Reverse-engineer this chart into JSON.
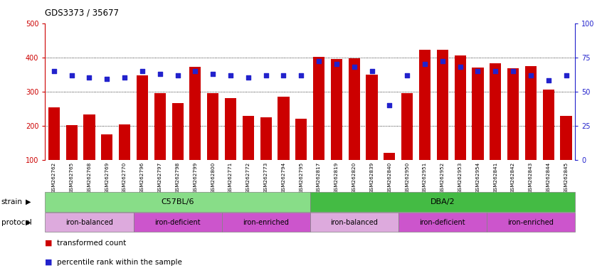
{
  "title": "GDS3373 / 35677",
  "samples": [
    "GSM262762",
    "GSM262765",
    "GSM262768",
    "GSM262769",
    "GSM262770",
    "GSM262796",
    "GSM262797",
    "GSM262798",
    "GSM262799",
    "GSM262800",
    "GSM262771",
    "GSM262772",
    "GSM262773",
    "GSM262794",
    "GSM262795",
    "GSM262817",
    "GSM262819",
    "GSM262820",
    "GSM262839",
    "GSM262840",
    "GSM262950",
    "GSM262951",
    "GSM262952",
    "GSM262953",
    "GSM262954",
    "GSM262841",
    "GSM262842",
    "GSM262843",
    "GSM262844",
    "GSM262845"
  ],
  "bar_values": [
    253,
    201,
    232,
    175,
    203,
    348,
    296,
    265,
    372,
    296,
    281,
    228,
    224,
    285,
    220,
    402,
    395,
    398,
    350,
    120,
    296,
    422,
    422,
    405,
    370,
    383,
    367,
    375,
    305,
    228
  ],
  "dot_values": [
    65,
    62,
    60,
    59,
    60,
    65,
    63,
    62,
    65,
    63,
    62,
    60,
    62,
    62,
    62,
    72,
    70,
    68,
    65,
    40,
    62,
    70,
    72,
    68,
    65,
    65,
    65,
    62,
    58,
    62
  ],
  "ylim_left": [
    100,
    500
  ],
  "ylim_right": [
    0,
    100
  ],
  "yticks_left": [
    100,
    200,
    300,
    400,
    500
  ],
  "yticks_right": [
    0,
    25,
    50,
    75,
    100
  ],
  "bar_color": "#cc0000",
  "dot_color": "#2222cc",
  "axis_color_left": "#cc0000",
  "axis_color_right": "#2222cc",
  "strain_groups": [
    {
      "label": "C57BL/6",
      "start": 0,
      "end": 15,
      "color": "#88dd88"
    },
    {
      "label": "DBA/2",
      "start": 15,
      "end": 30,
      "color": "#44bb44"
    }
  ],
  "protocol_groups": [
    {
      "label": "iron-balanced",
      "start": 0,
      "end": 5,
      "color": "#ddaadd"
    },
    {
      "label": "iron-deficient",
      "start": 5,
      "end": 10,
      "color": "#cc55cc"
    },
    {
      "label": "iron-enriched",
      "start": 10,
      "end": 15,
      "color": "#cc55cc"
    },
    {
      "label": "iron-balanced",
      "start": 15,
      "end": 20,
      "color": "#ddaadd"
    },
    {
      "label": "iron-deficient",
      "start": 20,
      "end": 25,
      "color": "#cc55cc"
    },
    {
      "label": "iron-enriched",
      "start": 25,
      "end": 30,
      "color": "#cc55cc"
    }
  ],
  "legend_bar_label": "transformed count",
  "legend_dot_label": "percentile rank within the sample",
  "strain_label": "strain",
  "protocol_label": "protocol",
  "tick_bg_color": "#cccccc",
  "fig_width": 8.46,
  "fig_height": 3.84,
  "dpi": 100
}
